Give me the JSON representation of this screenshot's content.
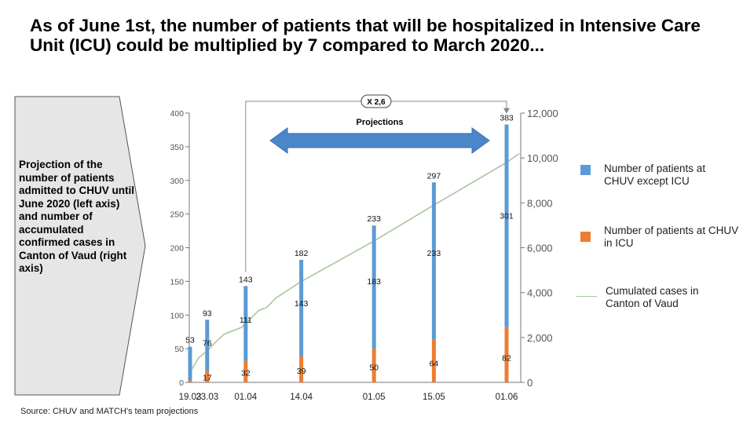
{
  "title": "As of June 1st, the number of patients that will be hospitalized in Intensive Care Unit (ICU) could be multiplied by 7 compared to March 2020...",
  "callout_text": "Projection of the number of patients admitted to CHUV until June 2020 (left axis) and number of accumulated confirmed cases in Canton of Vaud (right axis)",
  "source": "Source: CHUV and MATCH's team projections",
  "projections_label": "Projections",
  "multiplier_label": "X 2,6",
  "legend": {
    "blue": "Number of patients at CHUV except ICU",
    "orange": "Number of patients at CHUV in ICU",
    "line": "Cumulated cases in Canton of Vaud"
  },
  "colors": {
    "blue": "#5b9bd5",
    "orange": "#ed7d31",
    "line": "#a9c6a0",
    "arrow": "#4a86c8",
    "axis": "#777777"
  },
  "chart_data": {
    "type": "bar",
    "stacked": true,
    "categories": [
      "19.03",
      "23.03",
      "01.04",
      "14.04",
      "01.05",
      "15.05",
      "01.06"
    ],
    "left_axis": {
      "ylim": [
        0,
        400
      ],
      "ticks": [
        0,
        50,
        100,
        150,
        200,
        250,
        300,
        350,
        400
      ]
    },
    "right_axis": {
      "ylim": [
        0,
        12000
      ],
      "ticks": [
        "0",
        "2,000",
        "4,000",
        "6,000",
        "8,000",
        "10,000",
        "12,000"
      ]
    },
    "series": [
      {
        "name": "Number of patients at CHUV except ICU",
        "values": [
          50,
          76,
          111,
          143,
          183,
          233,
          301
        ]
      },
      {
        "name": "Number of patients at CHUV in ICU",
        "values": [
          3,
          17,
          32,
          39,
          50,
          64,
          82
        ]
      }
    ],
    "totals": [
      53,
      93,
      143,
      182,
      233,
      297,
      383
    ],
    "line_series": {
      "name": "Cumulated cases in Canton of Vaud",
      "axis": "right",
      "points": [
        [
          "19.03",
          450
        ],
        [
          "21.03",
          1100
        ],
        [
          "23.03",
          1400
        ],
        [
          "25.03",
          1800
        ],
        [
          "27.03",
          2150
        ],
        [
          "29.03",
          2300
        ],
        [
          "31.03",
          2450
        ],
        [
          "02.04",
          2800
        ],
        [
          "04.04",
          3200
        ],
        [
          "06.04",
          3350
        ],
        [
          "08.04",
          3750
        ],
        [
          "10.04",
          4000
        ],
        [
          "14.04",
          4500
        ],
        [
          "01.05",
          6300
        ],
        [
          "15.05",
          7900
        ],
        [
          "01.06",
          9800
        ],
        [
          "04.06",
          10200
        ]
      ]
    },
    "annotations": [
      "Projections",
      "X 2,6"
    ]
  }
}
